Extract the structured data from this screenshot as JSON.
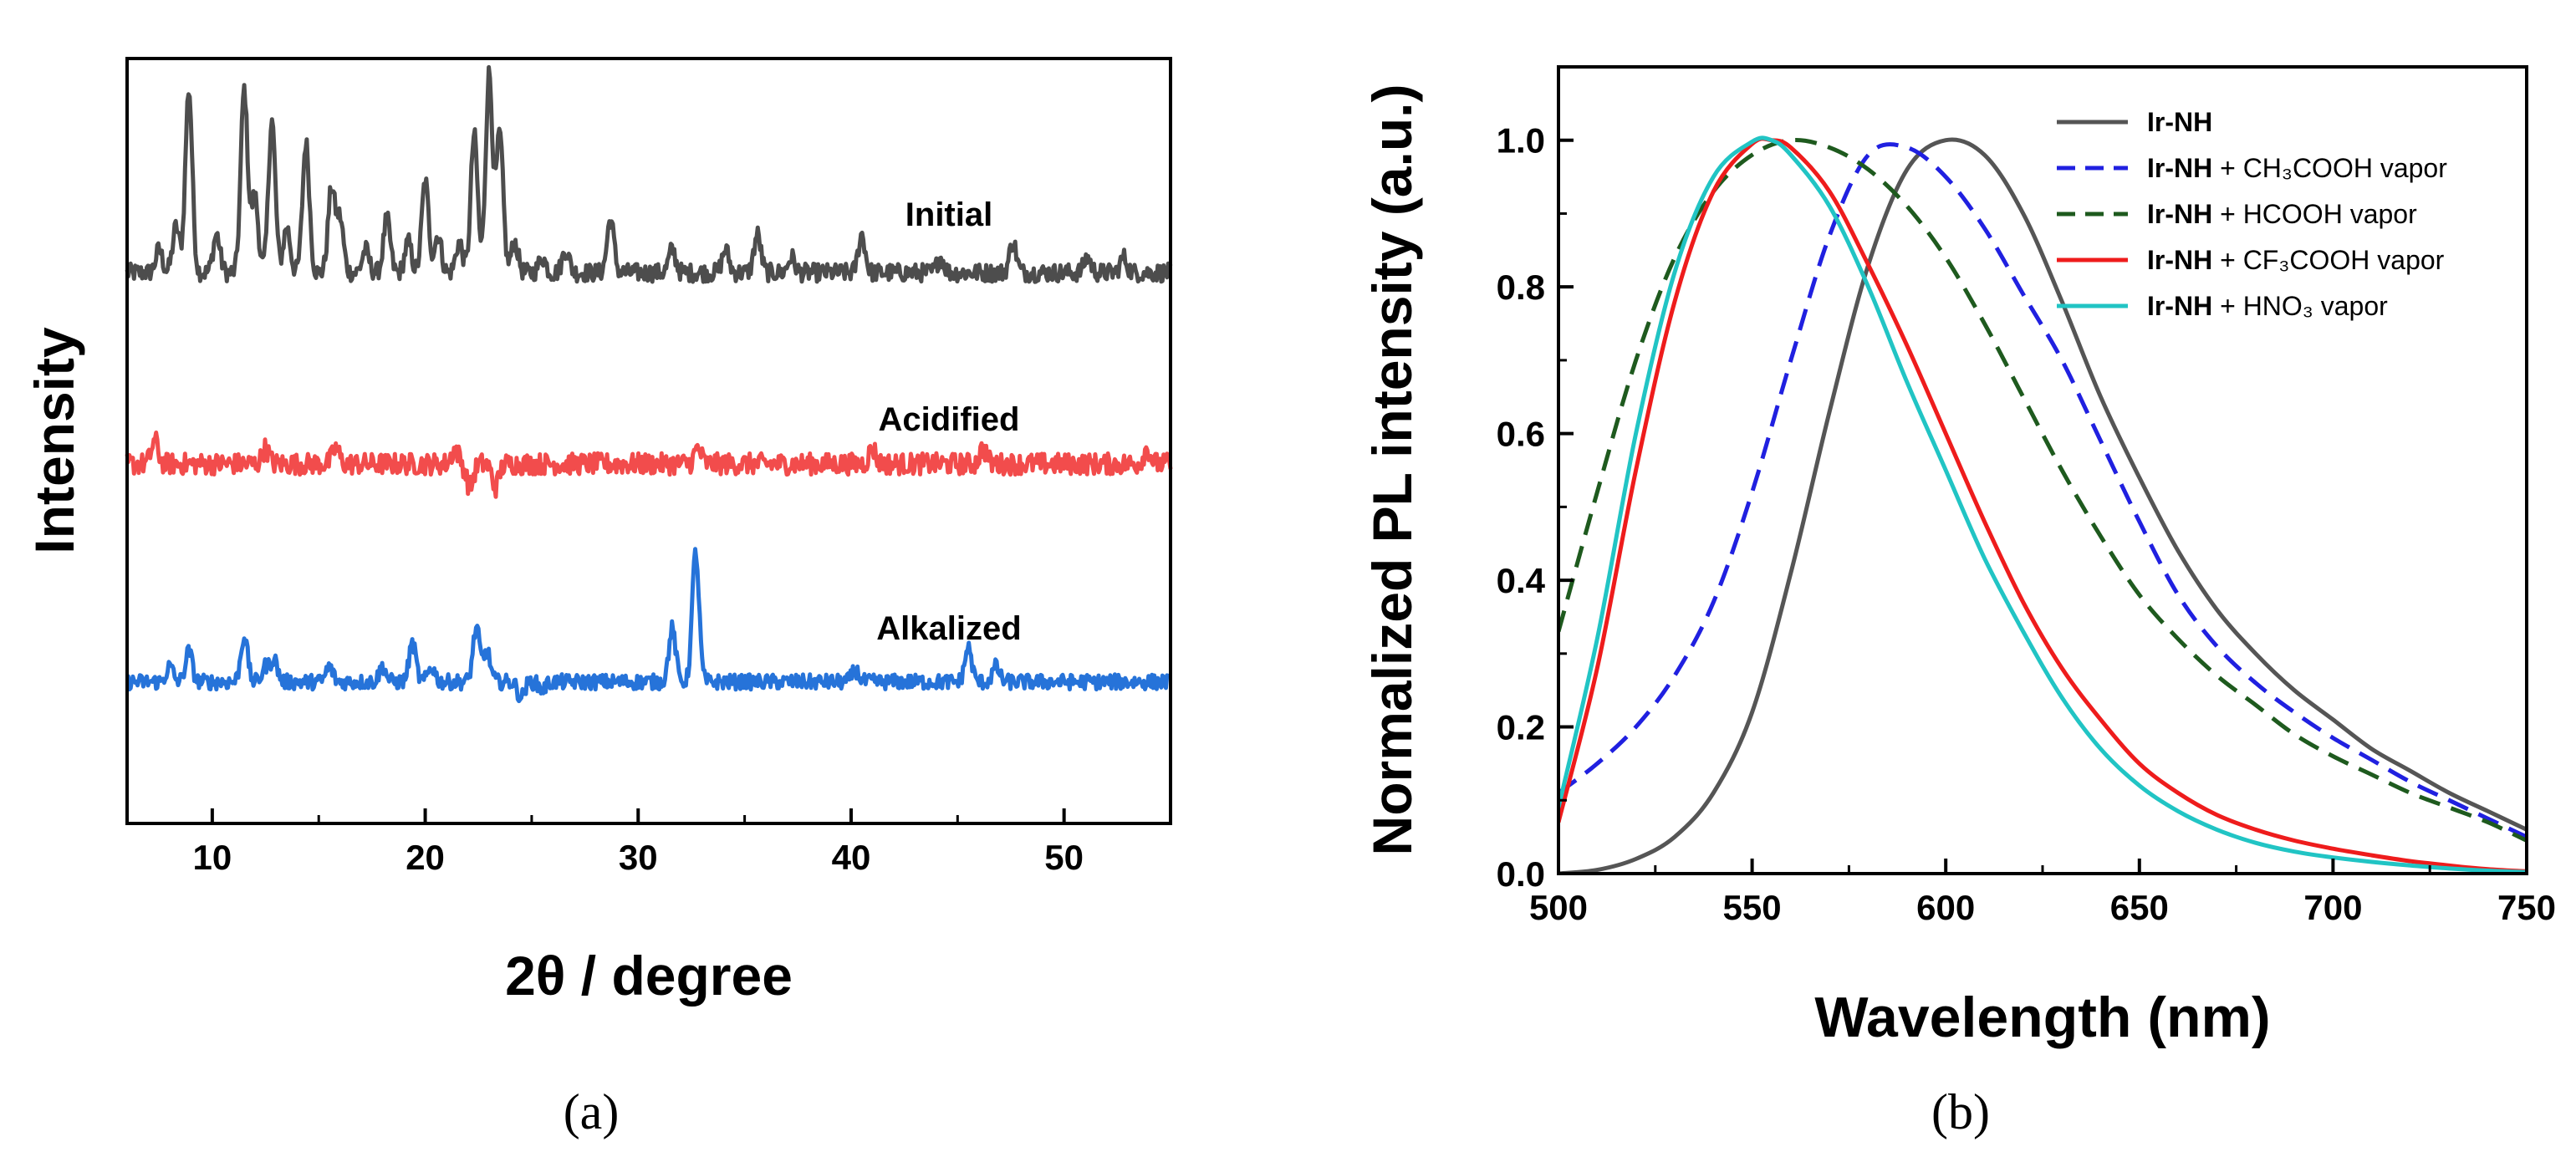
{
  "chart_data": [
    {
      "type": "line",
      "panel_label": "(a)",
      "xlabel": "2θ / degree",
      "ylabel": "Intensity",
      "xlim": [
        6,
        55
      ],
      "xticks": [
        10,
        20,
        30,
        40,
        50
      ],
      "y_tick_labels": false,
      "grid": false,
      "series": [
        {
          "name": "Initial",
          "color": "#4d4d4d",
          "baseline": 0.72,
          "noise": 0.012,
          "peaks": [
            [
              7.5,
              0.03
            ],
            [
              8.3,
              0.06
            ],
            [
              8.9,
              0.24
            ],
            [
              10.2,
              0.05
            ],
            [
              11.5,
              0.24
            ],
            [
              12.0,
              0.1
            ],
            [
              12.8,
              0.2
            ],
            [
              13.5,
              0.06
            ],
            [
              14.4,
              0.17
            ],
            [
              15.6,
              0.11
            ],
            [
              16.0,
              0.07
            ],
            [
              17.2,
              0.03
            ],
            [
              18.2,
              0.07
            ],
            [
              19.2,
              0.04
            ],
            [
              20.0,
              0.12
            ],
            [
              20.6,
              0.05
            ],
            [
              21.6,
              0.04
            ],
            [
              22.3,
              0.18
            ],
            [
              23.0,
              0.26
            ],
            [
              23.5,
              0.18
            ],
            [
              24.2,
              0.04
            ],
            [
              25.5,
              0.02
            ],
            [
              26.6,
              0.03
            ],
            [
              28.7,
              0.07
            ],
            [
              31.6,
              0.03
            ],
            [
              34.1,
              0.03
            ],
            [
              35.6,
              0.05
            ],
            [
              37.2,
              0.02
            ],
            [
              40.5,
              0.05
            ],
            [
              44.2,
              0.02
            ],
            [
              47.6,
              0.04
            ],
            [
              51.1,
              0.02
            ],
            [
              52.8,
              0.02
            ]
          ]
        },
        {
          "name": "Acidified",
          "color": "#f24c4c",
          "baseline": 0.47,
          "noise": 0.014,
          "peaks": [
            [
              7.3,
              0.03
            ],
            [
              12.5,
              0.02
            ],
            [
              15.8,
              0.02
            ],
            [
              21.4,
              0.02
            ],
            [
              22.1,
              -0.03
            ],
            [
              23.3,
              -0.03
            ],
            [
              32.8,
              0.02
            ],
            [
              41.0,
              0.02
            ],
            [
              46.2,
              0.02
            ],
            [
              53.9,
              0.02
            ]
          ]
        },
        {
          "name": "Alkalized",
          "color": "#2673d9",
          "baseline": 0.185,
          "noise": 0.01,
          "peaks": [
            [
              8.0,
              0.02
            ],
            [
              8.9,
              0.04
            ],
            [
              11.5,
              0.06
            ],
            [
              12.5,
              0.02
            ],
            [
              12.9,
              0.03
            ],
            [
              15.5,
              0.02
            ],
            [
              18.0,
              0.02
            ],
            [
              19.4,
              0.05
            ],
            [
              20.3,
              0.02
            ],
            [
              22.4,
              0.07
            ],
            [
              22.9,
              0.04
            ],
            [
              24.5,
              -0.02
            ],
            [
              25.5,
              -0.01
            ],
            [
              31.6,
              0.07
            ],
            [
              32.7,
              0.17
            ],
            [
              40.2,
              0.015
            ],
            [
              45.5,
              0.045
            ],
            [
              46.8,
              0.02
            ]
          ]
        }
      ]
    },
    {
      "type": "line",
      "panel_label": "(b)",
      "xlabel": "Wavelength (nm)",
      "ylabel": "Normalized PL intensity (a.u.)",
      "xlim": [
        500,
        750
      ],
      "ylim": [
        0,
        1.1
      ],
      "xticks": [
        500,
        550,
        600,
        650,
        700,
        750
      ],
      "yticks": [
        0.0,
        0.2,
        0.4,
        0.6,
        0.8,
        1.0
      ],
      "ytick_labels": [
        "0.0",
        "0.2",
        "0.4",
        "0.6",
        "0.8",
        "1.0"
      ],
      "grid": false,
      "legend_position": "top-right",
      "series": [
        {
          "legend_bold": "Ir-NH",
          "legend_rest": "",
          "color": "#555555",
          "dash": "solid",
          "x": [
            500,
            510,
            520,
            530,
            540,
            550,
            560,
            570,
            580,
            590,
            600,
            610,
            620,
            630,
            640,
            650,
            660,
            670,
            680,
            690,
            700,
            710,
            720,
            730,
            740,
            750
          ],
          "y": [
            0.0,
            0.005,
            0.02,
            0.05,
            0.11,
            0.22,
            0.41,
            0.63,
            0.83,
            0.96,
            1.0,
            0.98,
            0.9,
            0.78,
            0.65,
            0.54,
            0.44,
            0.36,
            0.3,
            0.25,
            0.21,
            0.17,
            0.14,
            0.11,
            0.085,
            0.06
          ]
        },
        {
          "legend_bold": "Ir-NH",
          "legend_rest": " + CH₃COOH vapor",
          "color": "#2020e0",
          "dash": "dashed",
          "x": [
            500,
            510,
            520,
            530,
            540,
            550,
            560,
            570,
            580,
            590,
            600,
            610,
            620,
            630,
            640,
            650,
            660,
            670,
            680,
            690,
            700,
            710,
            720,
            730,
            740,
            750
          ],
          "y": [
            0.11,
            0.15,
            0.2,
            0.27,
            0.37,
            0.52,
            0.7,
            0.87,
            0.98,
            0.99,
            0.95,
            0.88,
            0.79,
            0.7,
            0.59,
            0.48,
            0.38,
            0.31,
            0.26,
            0.22,
            0.185,
            0.155,
            0.125,
            0.1,
            0.075,
            0.05
          ]
        },
        {
          "legend_bold": "Ir-NH",
          "legend_rest": " + HCOOH vapor",
          "color": "#1e5a1e",
          "dash": "dashed",
          "x": [
            500,
            510,
            520,
            530,
            540,
            550,
            560,
            570,
            580,
            590,
            600,
            610,
            620,
            630,
            640,
            650,
            660,
            670,
            680,
            690,
            700,
            710,
            720,
            730,
            740,
            750
          ],
          "y": [
            0.33,
            0.52,
            0.7,
            0.84,
            0.93,
            0.98,
            1.0,
            0.99,
            0.96,
            0.91,
            0.84,
            0.75,
            0.65,
            0.55,
            0.46,
            0.38,
            0.32,
            0.27,
            0.23,
            0.19,
            0.16,
            0.135,
            0.11,
            0.09,
            0.07,
            0.045
          ]
        },
        {
          "legend_bold": "Ir-NH",
          "legend_rest": " + CF₃COOH vapor",
          "color": "#ee1c1c",
          "dash": "solid",
          "x": [
            500,
            510,
            520,
            530,
            540,
            550,
            555,
            560,
            570,
            580,
            590,
            600,
            610,
            620,
            630,
            640,
            650,
            660,
            670,
            680,
            690,
            700,
            710,
            720,
            730,
            740,
            750
          ],
          "y": [
            0.07,
            0.28,
            0.55,
            0.78,
            0.93,
            0.995,
            1.0,
            0.99,
            0.93,
            0.83,
            0.72,
            0.6,
            0.48,
            0.37,
            0.28,
            0.21,
            0.15,
            0.11,
            0.08,
            0.06,
            0.045,
            0.034,
            0.025,
            0.017,
            0.011,
            0.006,
            0.003
          ]
        },
        {
          "legend_bold": "Ir-NH",
          "legend_rest": " + HNO₃ vapor",
          "color": "#21c4c4",
          "dash": "solid",
          "x": [
            500,
            510,
            520,
            530,
            540,
            550,
            555,
            560,
            570,
            580,
            590,
            600,
            610,
            620,
            630,
            640,
            650,
            660,
            670,
            680,
            690,
            700,
            710,
            720,
            730,
            740,
            750
          ],
          "y": [
            0.09,
            0.32,
            0.6,
            0.82,
            0.95,
            0.998,
            1.0,
            0.98,
            0.91,
            0.8,
            0.67,
            0.55,
            0.43,
            0.33,
            0.24,
            0.17,
            0.12,
            0.085,
            0.06,
            0.042,
            0.03,
            0.022,
            0.016,
            0.011,
            0.007,
            0.004,
            0.002
          ]
        }
      ]
    }
  ]
}
